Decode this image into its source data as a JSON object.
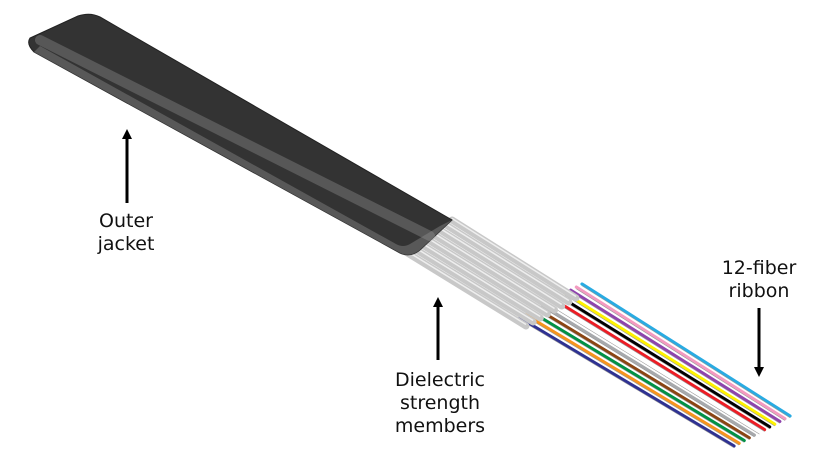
{
  "labels": {
    "outer_jacket": [
      "Outer",
      "jacket"
    ],
    "strength_members": [
      "Dielectric",
      "strength",
      "members"
    ],
    "fiber_ribbon": [
      "12-fiber",
      "ribbon"
    ]
  },
  "components": {
    "strength_member_count": 8,
    "fiber_count": 12
  },
  "colors": {
    "jacket": "#3a3a3a",
    "jacket_highlight": "#8e8e8e",
    "strength_member": "#c8c8c8",
    "arrow": "#000000",
    "fibers": [
      "#2e3192",
      "#f7941d",
      "#009245",
      "#8b4513",
      "#a7a9ac",
      "#ffffff",
      "#ed1c24",
      "#000000",
      "#fff200",
      "#8e44ad",
      "#f49ac1",
      "#29abe2"
    ]
  }
}
